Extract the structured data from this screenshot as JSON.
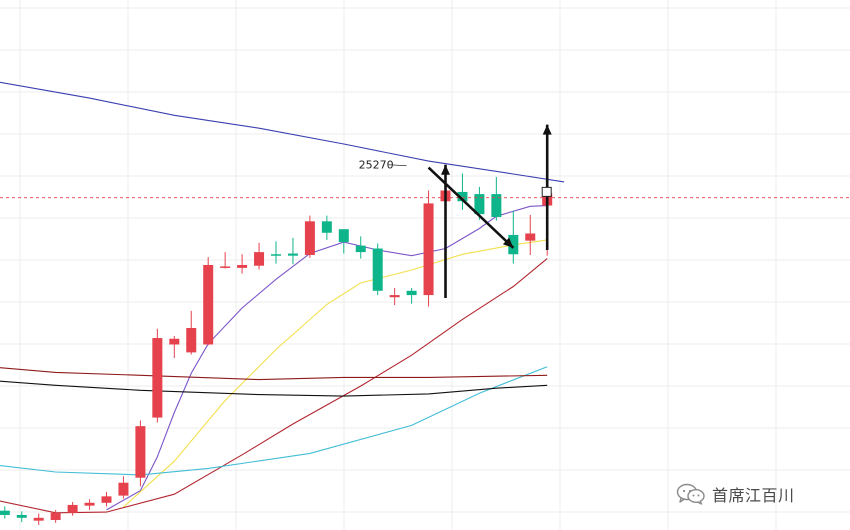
{
  "watermark": {
    "icon": "wechat-icon",
    "text": "首席江百川"
  },
  "chart_data": {
    "type": "candlestick",
    "title": "",
    "xlabel": "",
    "ylabel": "",
    "price_range": [
      24760,
      25500
    ],
    "grid": true,
    "reference_price": 25224,
    "high_annotation": {
      "index": 23,
      "price": 25270,
      "label": "25270"
    },
    "colors": {
      "up": "#e5424d",
      "down": "#0fb58a",
      "reference_line": "#e5424d"
    },
    "candles": [
      {
        "o": 24787,
        "c": 24781,
        "h": 24793,
        "l": 24776
      },
      {
        "o": 24781,
        "c": 24777,
        "h": 24786,
        "l": 24771
      },
      {
        "o": 24773,
        "c": 24777,
        "h": 24783,
        "l": 24767
      },
      {
        "o": 24774,
        "c": 24784,
        "h": 24788,
        "l": 24770
      },
      {
        "o": 24784,
        "c": 24795,
        "h": 24799,
        "l": 24780
      },
      {
        "o": 24794,
        "c": 24798,
        "h": 24803,
        "l": 24788
      },
      {
        "o": 24798,
        "c": 24807,
        "h": 24813,
        "l": 24793
      },
      {
        "o": 24808,
        "c": 24826,
        "h": 24835,
        "l": 24804
      },
      {
        "o": 24833,
        "c": 24905,
        "h": 24913,
        "l": 24821
      },
      {
        "o": 24917,
        "c": 25028,
        "h": 25041,
        "l": 24910
      },
      {
        "o": 25019,
        "c": 25027,
        "h": 25031,
        "l": 25000
      },
      {
        "o": 25008,
        "c": 25042,
        "h": 25066,
        "l": 25005
      },
      {
        "o": 25019,
        "c": 25130,
        "h": 25141,
        "l": 25018
      },
      {
        "o": 25126,
        "c": 25128,
        "h": 25148,
        "l": 25125
      },
      {
        "o": 25126,
        "c": 25130,
        "h": 25145,
        "l": 25118
      },
      {
        "o": 25129,
        "c": 25148,
        "h": 25161,
        "l": 25124
      },
      {
        "o": 25145,
        "c": 25144,
        "h": 25163,
        "l": 25132
      },
      {
        "o": 25146,
        "c": 25143,
        "h": 25168,
        "l": 25131
      },
      {
        "o": 25144,
        "c": 25191,
        "h": 25199,
        "l": 25140
      },
      {
        "o": 25191,
        "c": 25175,
        "h": 25199,
        "l": 25165
      },
      {
        "o": 25180,
        "c": 25162,
        "h": 25178,
        "l": 25146
      },
      {
        "o": 25157,
        "c": 25148,
        "h": 25170,
        "l": 25139
      },
      {
        "o": 25153,
        "c": 25094,
        "h": 25160,
        "l": 25088
      },
      {
        "o": 25085,
        "c": 25088,
        "h": 25098,
        "l": 25074
      },
      {
        "o": 25094,
        "c": 25088,
        "h": 25098,
        "l": 25076
      },
      {
        "o": 25088,
        "c": 25216,
        "h": 25234,
        "l": 25072
      },
      {
        "o": 25219,
        "c": 25234,
        "h": 25263,
        "l": 25167
      },
      {
        "o": 25232,
        "c": 25219,
        "h": 25258,
        "l": 25207
      },
      {
        "o": 25229,
        "c": 25201,
        "h": 25239,
        "l": 25193
      },
      {
        "o": 25229,
        "c": 25197,
        "h": 25253,
        "l": 25192
      },
      {
        "o": 25172,
        "c": 25145,
        "h": 25206,
        "l": 25132
      },
      {
        "o": 25164,
        "c": 25174,
        "h": 25200,
        "l": 25144
      },
      {
        "o": 25213,
        "c": 25230,
        "h": 25235,
        "l": 25143
      }
    ],
    "moving_averages": [
      {
        "color": "#3a3fb1",
        "points": [
          [
            -1,
            25388
          ],
          [
            5,
            25363
          ],
          [
            10,
            25339
          ],
          [
            15,
            25321
          ],
          [
            20,
            25299
          ],
          [
            25,
            25275
          ],
          [
            30,
            25257
          ],
          [
            33,
            25246
          ]
        ]
      },
      {
        "color": "#7b55c9",
        "points": [
          [
            6,
            24788
          ],
          [
            8,
            24815
          ],
          [
            9,
            24862
          ],
          [
            10,
            24924
          ],
          [
            11,
            24979
          ],
          [
            12,
            25020
          ],
          [
            14,
            25070
          ],
          [
            16,
            25110
          ],
          [
            18,
            25146
          ],
          [
            20,
            25162
          ],
          [
            22,
            25151
          ],
          [
            24,
            25143
          ],
          [
            26,
            25153
          ],
          [
            28,
            25181
          ],
          [
            29,
            25198
          ],
          [
            31,
            25212
          ],
          [
            32,
            25213
          ]
        ]
      },
      {
        "color": "#f3e04e",
        "points": [
          [
            7,
            24792
          ],
          [
            10,
            24856
          ],
          [
            13,
            24941
          ],
          [
            16,
            25012
          ],
          [
            19,
            25075
          ],
          [
            21,
            25105
          ],
          [
            24,
            25123
          ],
          [
            27,
            25145
          ],
          [
            30,
            25158
          ],
          [
            32,
            25165
          ]
        ]
      },
      {
        "color": "#b2262f",
        "points": [
          [
            -1,
            24804
          ],
          [
            3,
            24784
          ],
          [
            6,
            24785
          ],
          [
            10,
            24810
          ],
          [
            14,
            24865
          ],
          [
            17,
            24908
          ],
          [
            21,
            24961
          ],
          [
            24,
            25004
          ],
          [
            27,
            25054
          ],
          [
            30,
            25100
          ],
          [
            32,
            25139
          ]
        ]
      },
      {
        "color": "#42bdd6",
        "points": [
          [
            -1,
            24852
          ],
          [
            3,
            24841
          ],
          [
            8,
            24837
          ],
          [
            12,
            24846
          ],
          [
            18,
            24867
          ],
          [
            24,
            24906
          ],
          [
            28,
            24951
          ],
          [
            32,
            24988
          ]
        ]
      },
      {
        "color": "#8e1a1a",
        "points": [
          [
            -1,
            24988
          ],
          [
            3,
            24980
          ],
          [
            8,
            24976
          ],
          [
            15,
            24970
          ],
          [
            20,
            24973
          ],
          [
            25,
            24973
          ],
          [
            32,
            24976
          ]
        ]
      },
      {
        "color": "#111111",
        "points": [
          [
            -1,
            24969
          ],
          [
            3,
            24962
          ],
          [
            8,
            24955
          ],
          [
            15,
            24949
          ],
          [
            20,
            24947
          ],
          [
            25,
            24950
          ],
          [
            29,
            24958
          ],
          [
            32,
            24962
          ]
        ]
      }
    ],
    "arrows": [
      {
        "from": [
          26,
          25084
        ],
        "to": [
          26,
          25270
        ]
      },
      {
        "from": [
          25,
          25266
        ],
        "to": [
          30,
          25154
        ]
      },
      {
        "from": [
          32,
          25151
        ],
        "to": [
          32,
          25326
        ]
      }
    ]
  }
}
